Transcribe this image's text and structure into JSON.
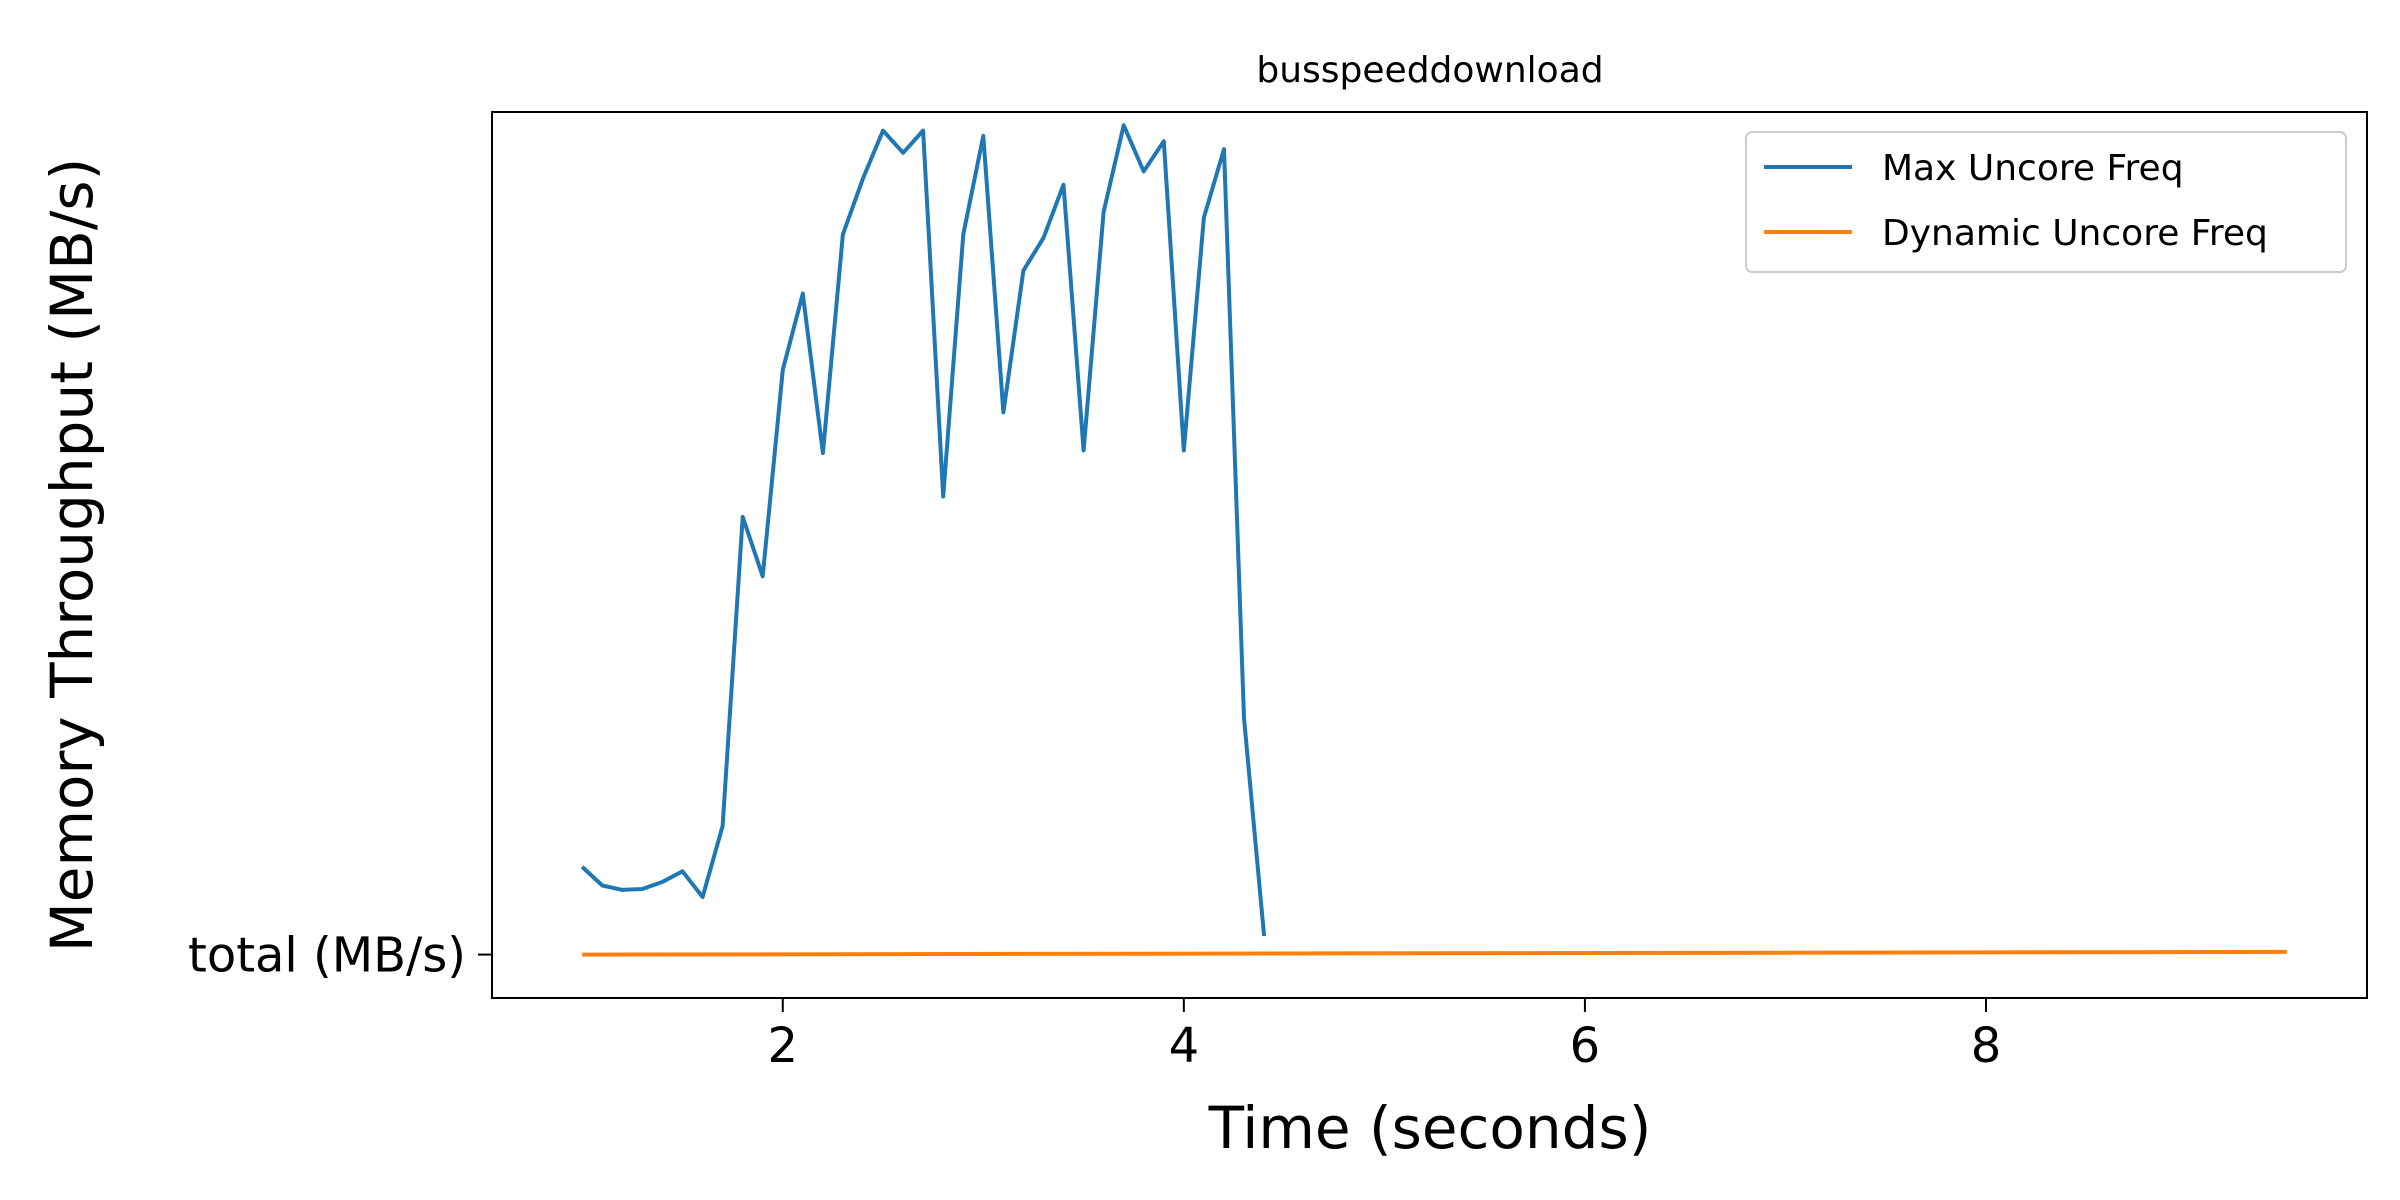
{
  "chart_data": {
    "type": "line",
    "title": "busspeeddownload",
    "xlabel": "Time (seconds)",
    "ylabel": "Memory Throughput (MB/s)",
    "xlim": [
      0.55,
      9.9
    ],
    "ylim": [
      0,
      100
    ],
    "x_ticks": [
      2,
      4,
      6,
      8
    ],
    "y_tick_label": "total (MB/s)",
    "y_tick_value": 4.9,
    "grid": false,
    "legend_position": "top-right",
    "series": [
      {
        "name": "Max Uncore Freq",
        "color": "#1f77b4",
        "x": [
          1.0,
          1.1,
          1.2,
          1.3,
          1.4,
          1.5,
          1.6,
          1.7,
          1.8,
          1.9,
          2.0,
          2.1,
          2.2,
          2.3,
          2.4,
          2.5,
          2.6,
          2.7,
          2.8,
          2.9,
          3.0,
          3.1,
          3.2,
          3.3,
          3.4,
          3.5,
          3.6,
          3.7,
          3.8,
          3.9,
          4.0,
          4.1,
          4.2,
          4.3,
          4.4
        ],
        "values": [
          14.8,
          12.7,
          12.2,
          12.3,
          13.1,
          14.3,
          11.4,
          19.4,
          54.3,
          47.6,
          70.9,
          79.5,
          61.5,
          86.2,
          92.5,
          97.9,
          95.4,
          97.9,
          56.6,
          86.2,
          97.3,
          66.1,
          82.1,
          85.8,
          91.8,
          61.8,
          88.7,
          98.5,
          93.3,
          96.7,
          61.8,
          88.1,
          95.8,
          31.6,
          7.0
        ]
      },
      {
        "name": "Dynamic Uncore Freq",
        "color": "#ff7f0e",
        "x": [
          1.0,
          9.5
        ],
        "values": [
          4.9,
          5.2
        ]
      }
    ]
  }
}
